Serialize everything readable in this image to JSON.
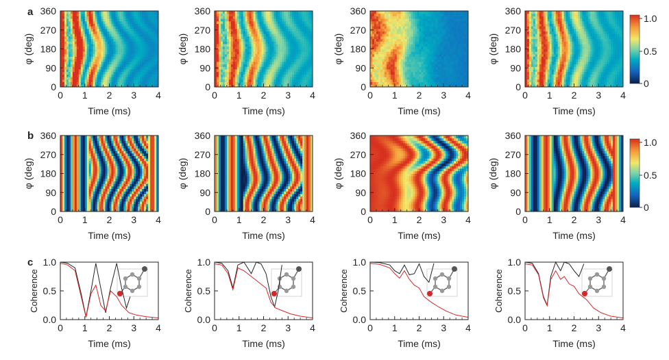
{
  "figure": {
    "panel_letters": [
      "a",
      "b",
      "c"
    ],
    "colorbar_ticks": [
      "1.0",
      "0.5",
      "0"
    ]
  },
  "chart_data": [
    {
      "panel": "a",
      "type": "heatmap",
      "count": 4,
      "xlabel": "Time (ms)",
      "ylabel": "φ (deg)",
      "xticks": [
        "0",
        "1",
        "2",
        "3",
        "4"
      ],
      "yticks": [
        "0",
        "90",
        "180",
        "270",
        "360"
      ],
      "xlim": [
        0,
        4
      ],
      "ylim": [
        0,
        360
      ],
      "colorscale": {
        "min": 0,
        "max": 1,
        "colors": [
          "#0b1f4a",
          "#1565c0",
          "#00acc1",
          "#7dd3a8",
          "#f2e86a",
          "#f49a3a",
          "#d7301f"
        ]
      }
    },
    {
      "panel": "b",
      "type": "heatmap",
      "count": 4,
      "xlabel": "Time (ms)",
      "ylabel": "φ (deg)",
      "xticks": [
        "0",
        "1",
        "2",
        "3",
        "4"
      ],
      "yticks": [
        "0",
        "90",
        "180",
        "270",
        "360"
      ],
      "xlim": [
        0,
        4
      ],
      "ylim": [
        0,
        360
      ],
      "colorscale": {
        "min": 0,
        "max": 1,
        "colors": [
          "#0b1f4a",
          "#1565c0",
          "#00acc1",
          "#7dd3a8",
          "#f2e86a",
          "#f49a3a",
          "#d7301f"
        ]
      }
    },
    {
      "panel": "c",
      "type": "line",
      "count": 4,
      "xlabel": "Time (ms)",
      "ylabel": "Coherence",
      "xticks": [
        "0",
        "1",
        "2",
        "3",
        "4"
      ],
      "yticks": [
        "0.0",
        "0.5",
        "1.0"
      ],
      "xlim": [
        0,
        4
      ],
      "ylim": [
        0,
        1
      ],
      "plots": [
        {
          "series": [
            {
              "color": "#222222",
              "x": [
                0,
                0.3,
                0.6,
                0.85,
                1.05,
                1.25,
                1.45,
                1.65,
                1.85,
                2.05,
                2.3,
                2.5,
                2.7,
                2.85
              ],
              "y": [
                1.0,
                0.98,
                0.9,
                0.45,
                0.05,
                0.5,
                0.98,
                0.55,
                0.12,
                0.55,
                0.98,
                0.55,
                0.2,
                0.4
              ]
            },
            {
              "color": "#d62728",
              "x": [
                0,
                0.3,
                0.6,
                0.85,
                1.05,
                1.25,
                1.45,
                1.65,
                1.85,
                2.05,
                2.3,
                2.5,
                2.8,
                3.1,
                3.5,
                4.0
              ],
              "y": [
                0.98,
                0.95,
                0.85,
                0.4,
                0.04,
                0.45,
                0.6,
                0.25,
                0.15,
                0.5,
                0.4,
                0.25,
                0.12,
                0.08,
                0.05,
                0.03
              ]
            }
          ]
        },
        {
          "series": [
            {
              "color": "#222222",
              "x": [
                0,
                0.3,
                0.55,
                0.75,
                0.95,
                1.2,
                1.5,
                1.7,
                1.9,
                2.1,
                2.3,
                2.45,
                2.6,
                2.75
              ],
              "y": [
                1.0,
                0.98,
                0.85,
                0.55,
                0.95,
                1.0,
                0.8,
                1.0,
                0.97,
                0.8,
                0.4,
                0.22,
                0.5,
                0.95
              ]
            },
            {
              "color": "#d62728",
              "x": [
                0,
                0.3,
                0.55,
                0.75,
                0.95,
                1.2,
                1.5,
                1.8,
                2.1,
                2.3,
                2.5,
                2.8,
                3.1,
                3.5,
                4.0
              ],
              "y": [
                0.97,
                0.95,
                0.8,
                0.52,
                0.9,
                0.85,
                0.75,
                0.65,
                0.55,
                0.3,
                0.2,
                0.15,
                0.1,
                0.06,
                0.03
              ]
            }
          ]
        },
        {
          "series": [
            {
              "color": "#222222",
              "x": [
                0,
                0.4,
                0.8,
                1.0,
                1.2,
                1.4,
                1.6,
                1.8,
                2.0,
                2.2,
                2.4,
                2.6
              ],
              "y": [
                1.0,
                0.99,
                0.95,
                0.85,
                0.8,
                0.95,
                0.78,
                0.8,
                0.97,
                0.75,
                0.65,
                0.98
              ]
            },
            {
              "color": "#d62728",
              "x": [
                0,
                0.4,
                0.8,
                1.0,
                1.2,
                1.4,
                1.6,
                1.8,
                2.0,
                2.2,
                2.5,
                2.8,
                3.1,
                3.5,
                4.0
              ],
              "y": [
                0.98,
                0.96,
                0.9,
                0.8,
                0.72,
                0.85,
                0.7,
                0.6,
                0.55,
                0.4,
                0.3,
                0.22,
                0.15,
                0.08,
                0.04
              ]
            }
          ]
        },
        {
          "series": [
            {
              "color": "#222222",
              "x": [
                0,
                0.3,
                0.55,
                0.75,
                0.9,
                1.05,
                1.25,
                1.45,
                1.6,
                1.8,
                2.0,
                2.2,
                2.4
              ],
              "y": [
                1.0,
                0.98,
                0.8,
                0.4,
                0.25,
                0.75,
                1.0,
                0.85,
                1.0,
                0.97,
                0.85,
                0.75,
                0.97
              ]
            },
            {
              "color": "#d62728",
              "x": [
                0,
                0.3,
                0.55,
                0.75,
                0.9,
                1.05,
                1.25,
                1.45,
                1.6,
                1.8,
                2.0,
                2.2,
                2.5,
                2.8,
                3.1,
                3.5,
                4.0
              ],
              "y": [
                0.97,
                0.95,
                0.78,
                0.38,
                0.24,
                0.7,
                0.85,
                0.7,
                0.75,
                0.62,
                0.58,
                0.45,
                0.35,
                0.2,
                0.12,
                0.06,
                0.03
              ]
            }
          ]
        }
      ]
    }
  ]
}
